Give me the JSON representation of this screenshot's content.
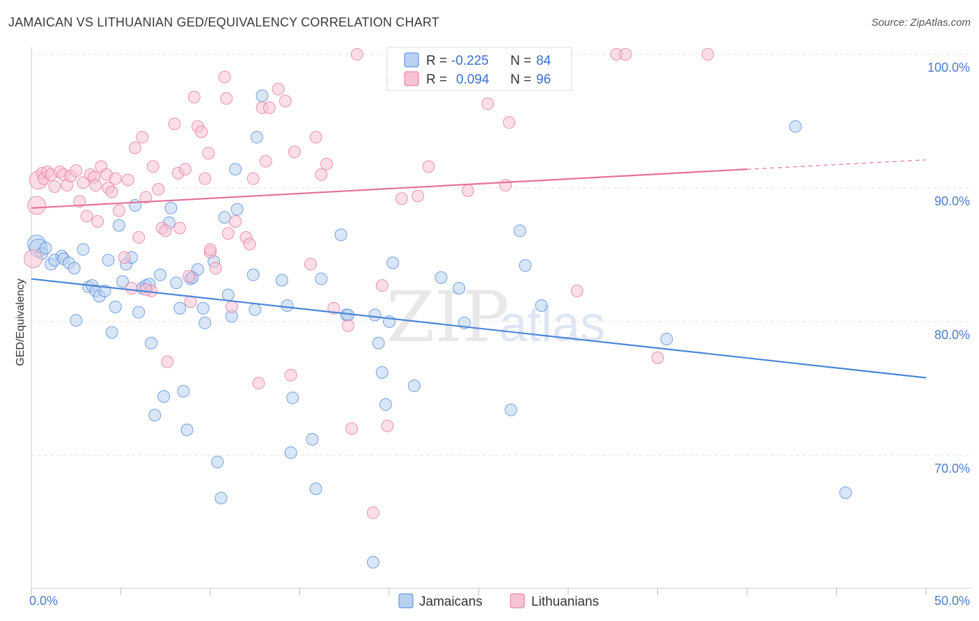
{
  "title": "JAMAICAN VS LITHUANIAN GED/EQUIVALENCY CORRELATION CHART",
  "source": "Source: ZipAtlas.com",
  "colors": {
    "jamaicans": "#4a86d8",
    "jamaicans_fill": "#b9d1f1",
    "lithuanians": "#e4729a",
    "lithuanians_fill": "#f7c3d4"
  },
  "legend": {
    "rows": [
      {
        "r_label": "R =",
        "r_value": "-0.225",
        "n_label": "N =",
        "n_value": "84"
      },
      {
        "r_label": "R =",
        "r_value": "0.094",
        "n_label": "N =",
        "n_value": "96"
      }
    ]
  },
  "bottom_legend": [
    "Jamaicans",
    "Lithuanians"
  ],
  "chart_data": {
    "type": "scatter",
    "title": "JAMAICAN VS LITHUANIAN GED/EQUIVALENCY CORRELATION CHART",
    "xlabel": "",
    "ylabel": "GED/Equivalency",
    "xlim": [
      0,
      50
    ],
    "ylim": [
      60.5,
      102
    ],
    "x_tick_labels": [
      "0.0%",
      "50.0%"
    ],
    "y_ticks": [
      70,
      80,
      90,
      100
    ],
    "y_tick_labels": [
      "70.0%",
      "80.0%",
      "90.0%",
      "100.0%"
    ],
    "grid": true,
    "legend_position": "top-center",
    "series": [
      {
        "name": "Jamaicans",
        "trend": {
          "x": [
            0,
            50
          ],
          "y": [
            83.2,
            75.8
          ]
        },
        "points": [
          [
            0.3,
            85.8
          ],
          [
            0.4,
            85.5
          ],
          [
            0.6,
            85.1
          ],
          [
            0.8,
            85.5
          ],
          [
            1.1,
            84.3
          ],
          [
            1.3,
            84.6
          ],
          [
            1.7,
            84.9
          ],
          [
            1.8,
            84.7
          ],
          [
            2.1,
            84.4
          ],
          [
            2.4,
            84.0
          ],
          [
            2.5,
            80.1
          ],
          [
            2.9,
            85.4
          ],
          [
            3.2,
            82.6
          ],
          [
            3.4,
            82.7
          ],
          [
            3.6,
            82.3
          ],
          [
            3.8,
            81.9
          ],
          [
            4.1,
            82.3
          ],
          [
            4.3,
            84.6
          ],
          [
            4.5,
            79.2
          ],
          [
            4.7,
            81.1
          ],
          [
            4.9,
            87.2
          ],
          [
            5.1,
            83.0
          ],
          [
            5.3,
            84.3
          ],
          [
            5.6,
            84.8
          ],
          [
            5.8,
            88.7
          ],
          [
            6.0,
            80.7
          ],
          [
            6.2,
            82.5
          ],
          [
            6.4,
            82.7
          ],
          [
            6.7,
            78.4
          ],
          [
            6.9,
            73.0
          ],
          [
            7.2,
            83.5
          ],
          [
            7.4,
            74.4
          ],
          [
            7.7,
            87.4
          ],
          [
            7.8,
            88.5
          ],
          [
            8.1,
            82.9
          ],
          [
            8.3,
            81.0
          ],
          [
            8.5,
            74.8
          ],
          [
            8.7,
            71.9
          ],
          [
            8.9,
            83.2
          ],
          [
            9.3,
            83.9
          ],
          [
            9.6,
            81.0
          ],
          [
            9.7,
            79.9
          ],
          [
            10.2,
            84.5
          ],
          [
            10.4,
            69.5
          ],
          [
            10.6,
            66.8
          ],
          [
            10.8,
            87.8
          ],
          [
            11.0,
            82.0
          ],
          [
            11.2,
            80.4
          ],
          [
            11.4,
            91.4
          ],
          [
            11.5,
            88.4
          ],
          [
            12.5,
            80.9
          ],
          [
            12.6,
            93.8
          ],
          [
            12.9,
            96.9
          ],
          [
            14.0,
            83.1
          ],
          [
            14.3,
            81.2
          ],
          [
            14.5,
            70.2
          ],
          [
            14.6,
            74.3
          ],
          [
            15.7,
            71.2
          ],
          [
            15.9,
            67.5
          ],
          [
            16.2,
            83.2
          ],
          [
            17.3,
            86.5
          ],
          [
            17.6,
            80.5
          ],
          [
            17.7,
            80.5
          ],
          [
            19.1,
            62.0
          ],
          [
            19.2,
            80.5
          ],
          [
            19.4,
            78.4
          ],
          [
            19.6,
            76.2
          ],
          [
            19.8,
            73.8
          ],
          [
            20.0,
            80.0
          ],
          [
            20.2,
            84.4
          ],
          [
            21.4,
            75.2
          ],
          [
            22.9,
            83.3
          ],
          [
            23.9,
            82.5
          ],
          [
            24.2,
            79.9
          ],
          [
            26.8,
            73.4
          ],
          [
            27.3,
            86.8
          ],
          [
            27.6,
            84.2
          ],
          [
            28.5,
            81.2
          ],
          [
            35.5,
            78.7
          ],
          [
            42.7,
            94.6
          ],
          [
            45.5,
            67.2
          ],
          [
            12.4,
            83.5
          ],
          [
            9.0,
            83.3
          ],
          [
            6.6,
            82.8
          ]
        ]
      },
      {
        "name": "Lithuanians",
        "trend": {
          "x": [
            0,
            40
          ],
          "y": [
            88.5,
            91.4
          ]
        },
        "trend_dashed": {
          "x": [
            40,
            50
          ],
          "y": [
            91.4,
            92.1
          ]
        },
        "points": [
          [
            0.1,
            84.7
          ],
          [
            0.3,
            88.7
          ],
          [
            0.4,
            90.6
          ],
          [
            0.6,
            91.1
          ],
          [
            0.7,
            90.7
          ],
          [
            0.9,
            91.2
          ],
          [
            1.1,
            91.0
          ],
          [
            1.3,
            90.1
          ],
          [
            1.6,
            91.2
          ],
          [
            1.8,
            91.0
          ],
          [
            2.0,
            90.2
          ],
          [
            2.2,
            90.9
          ],
          [
            2.5,
            91.3
          ],
          [
            2.7,
            89.0
          ],
          [
            2.9,
            90.4
          ],
          [
            3.1,
            87.9
          ],
          [
            3.3,
            91.0
          ],
          [
            3.5,
            90.8
          ],
          [
            3.7,
            87.5
          ],
          [
            3.9,
            91.6
          ],
          [
            4.2,
            91.0
          ],
          [
            4.3,
            90.0
          ],
          [
            4.5,
            89.7
          ],
          [
            4.7,
            90.7
          ],
          [
            4.9,
            88.3
          ],
          [
            5.2,
            84.8
          ],
          [
            5.4,
            90.6
          ],
          [
            5.6,
            82.5
          ],
          [
            5.8,
            93.0
          ],
          [
            6.0,
            86.3
          ],
          [
            6.2,
            93.8
          ],
          [
            6.4,
            89.3
          ],
          [
            6.7,
            82.3
          ],
          [
            6.8,
            91.6
          ],
          [
            7.1,
            89.9
          ],
          [
            7.3,
            87.0
          ],
          [
            7.5,
            86.8
          ],
          [
            7.6,
            77.0
          ],
          [
            8.0,
            94.8
          ],
          [
            8.2,
            91.1
          ],
          [
            8.3,
            87.0
          ],
          [
            8.6,
            91.4
          ],
          [
            8.8,
            83.4
          ],
          [
            8.9,
            81.5
          ],
          [
            9.1,
            96.8
          ],
          [
            9.3,
            94.6
          ],
          [
            9.5,
            94.2
          ],
          [
            9.7,
            90.7
          ],
          [
            9.9,
            92.6
          ],
          [
            10.0,
            85.2
          ],
          [
            10.3,
            84.0
          ],
          [
            10.8,
            98.3
          ],
          [
            10.9,
            96.7
          ],
          [
            11.0,
            86.6
          ],
          [
            11.2,
            81.1
          ],
          [
            11.4,
            87.5
          ],
          [
            12.0,
            86.3
          ],
          [
            12.4,
            90.7
          ],
          [
            12.7,
            75.4
          ],
          [
            12.9,
            96.0
          ],
          [
            13.1,
            92.0
          ],
          [
            13.3,
            96.0
          ],
          [
            13.8,
            97.4
          ],
          [
            14.2,
            96.5
          ],
          [
            14.5,
            76.0
          ],
          [
            14.7,
            92.7
          ],
          [
            15.6,
            84.3
          ],
          [
            15.9,
            93.8
          ],
          [
            16.2,
            91.0
          ],
          [
            16.5,
            91.8
          ],
          [
            16.9,
            81.0
          ],
          [
            17.7,
            79.7
          ],
          [
            17.9,
            72.0
          ],
          [
            18.2,
            100.0
          ],
          [
            19.1,
            65.7
          ],
          [
            19.6,
            82.7
          ],
          [
            19.9,
            72.2
          ],
          [
            20.2,
            98.1
          ],
          [
            20.7,
            89.2
          ],
          [
            21.6,
            89.4
          ],
          [
            22.2,
            91.6
          ],
          [
            23.4,
            100.0
          ],
          [
            24.1,
            100.0
          ],
          [
            24.4,
            89.8
          ],
          [
            25.5,
            96.3
          ],
          [
            26.5,
            90.2
          ],
          [
            26.7,
            94.9
          ],
          [
            30.5,
            82.3
          ],
          [
            32.7,
            100.0
          ],
          [
            33.2,
            100.0
          ],
          [
            35.0,
            77.3
          ],
          [
            37.8,
            100.0
          ],
          [
            10.0,
            85.4
          ],
          [
            6.4,
            82.4
          ],
          [
            12.2,
            85.8
          ],
          [
            3.6,
            90.2
          ]
        ]
      }
    ]
  }
}
